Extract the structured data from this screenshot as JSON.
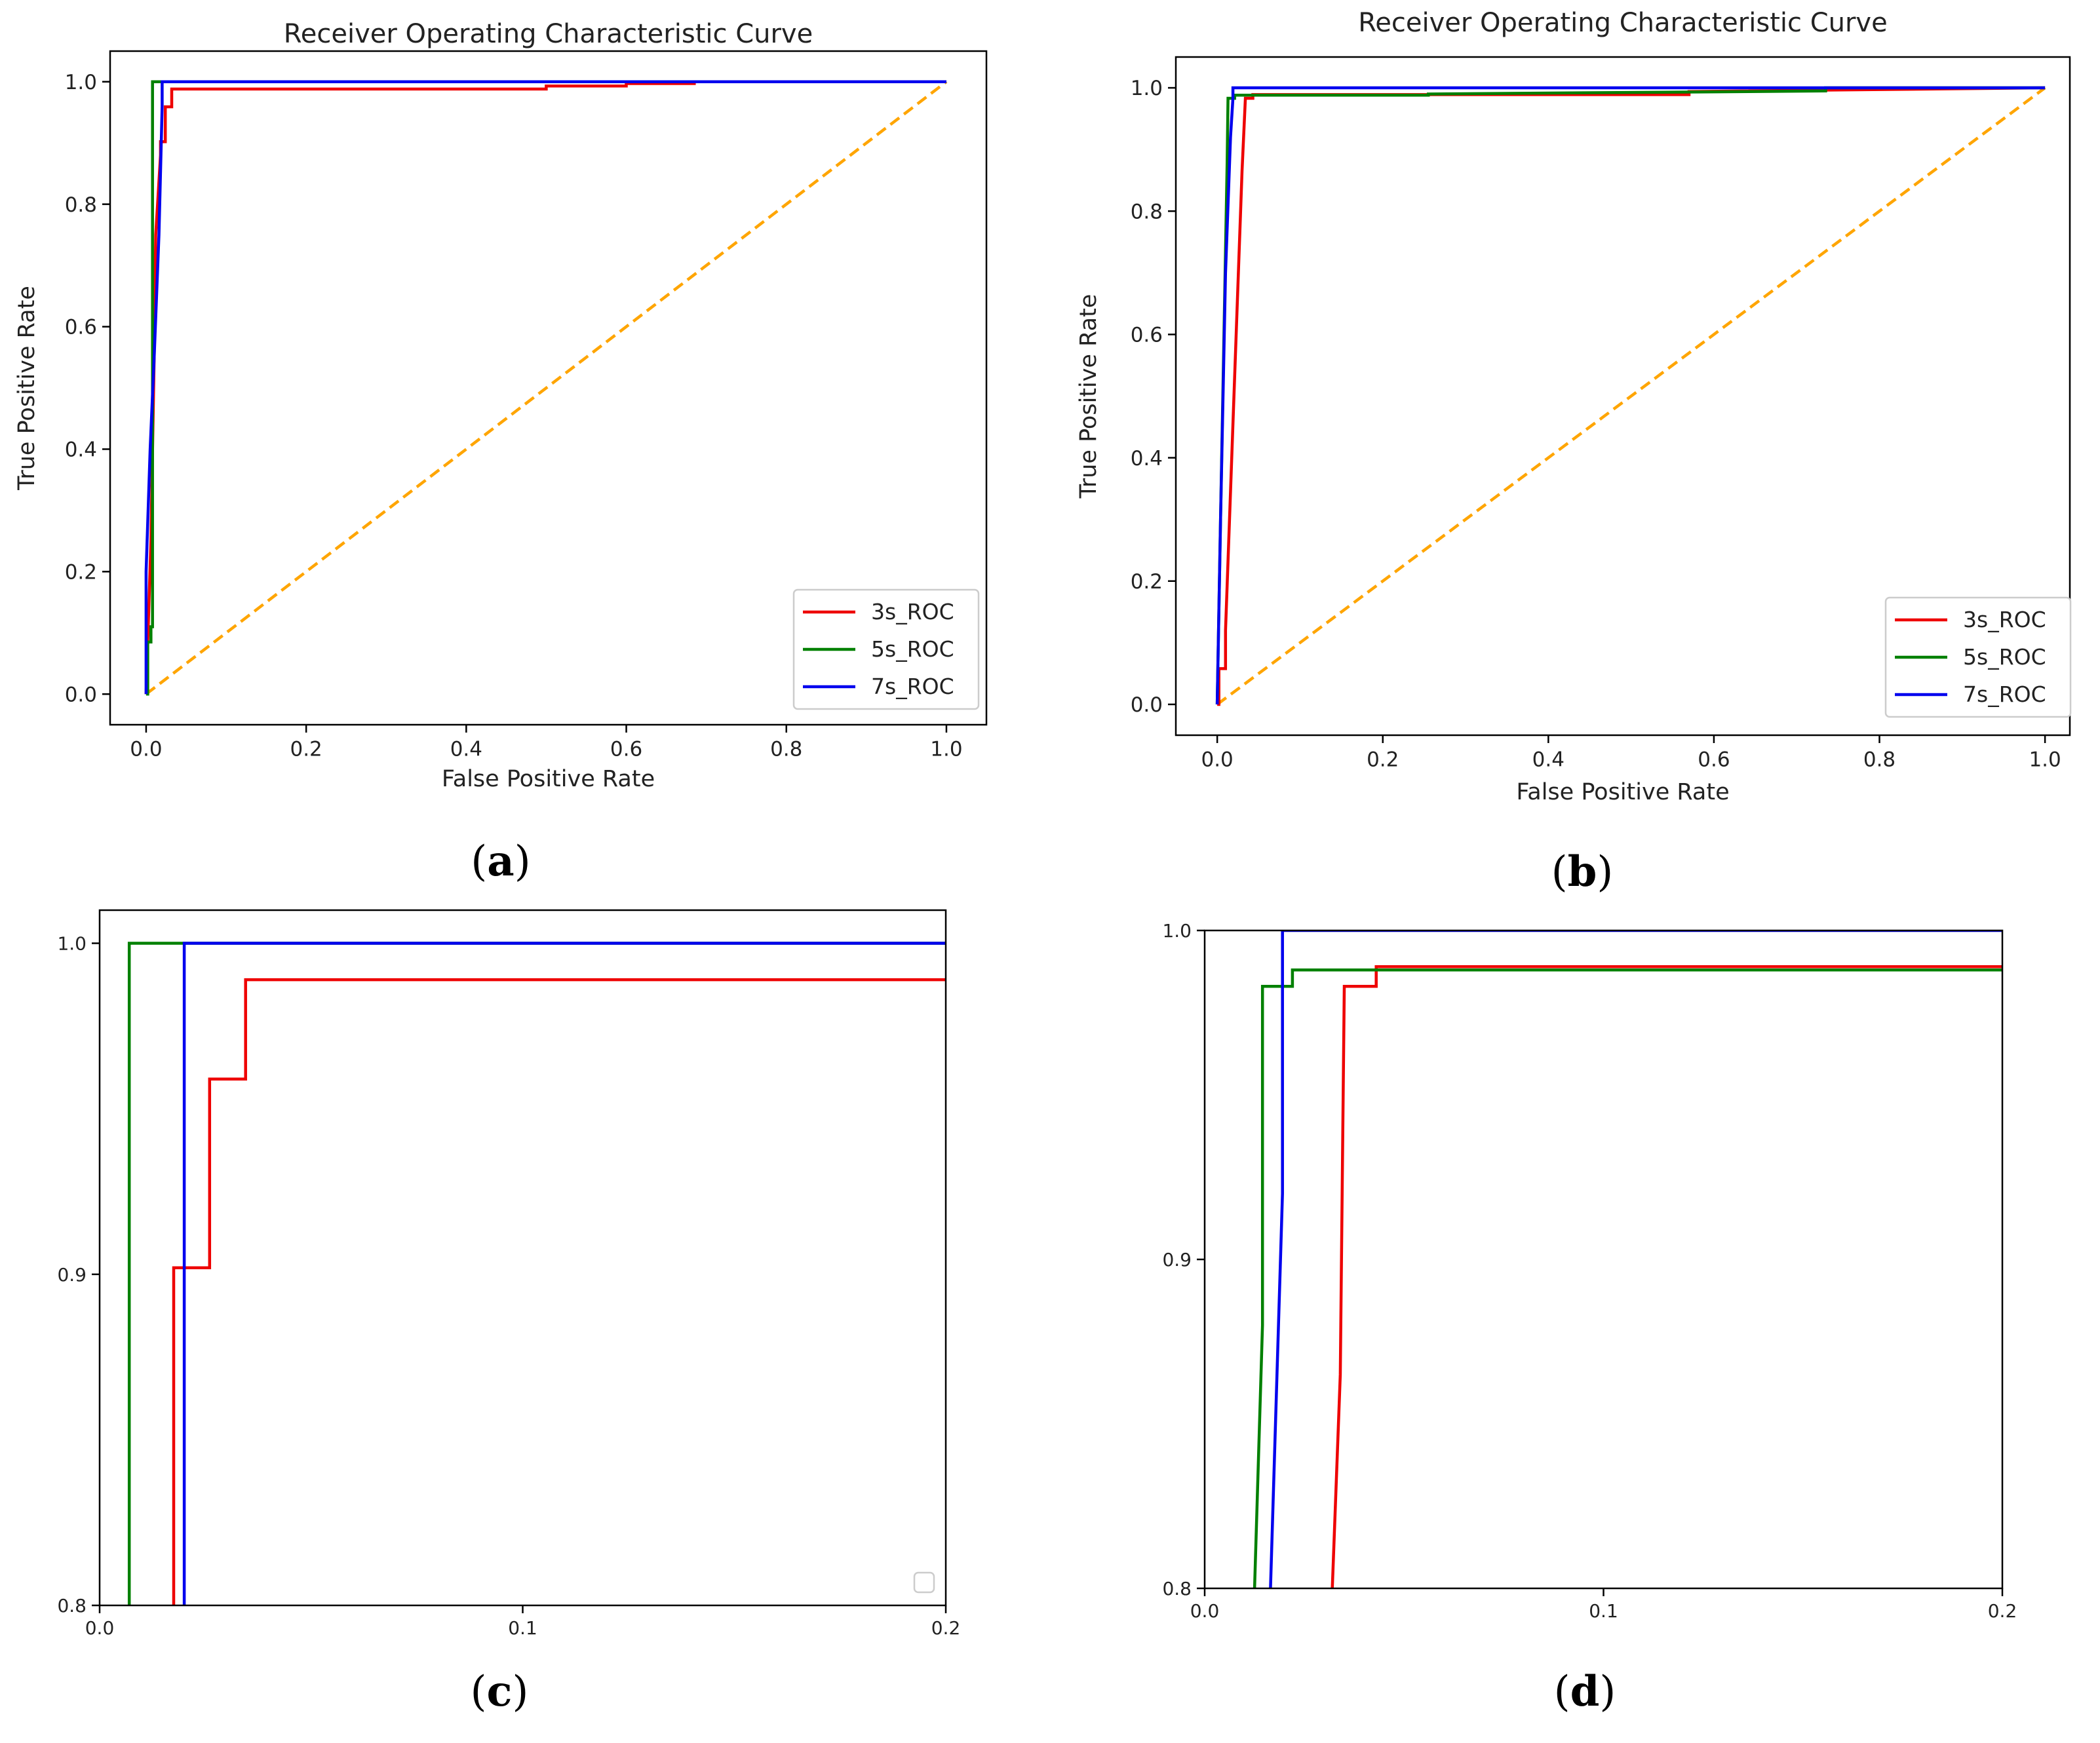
{
  "colors": {
    "3s_ROC": "#ee0000",
    "5s_ROC": "#008000",
    "7s_ROC": "#0000ee",
    "chance": "#ffa500",
    "axis": "#000000"
  },
  "chart_data": [
    {
      "type": "line",
      "panel": "a",
      "caption": "a",
      "title": "Receiver Operating Characteristic Curve",
      "xlabel": "False Positive Rate",
      "ylabel": "True Positive Rate",
      "xlim": [
        -0.045,
        1.05
      ],
      "ylim": [
        -0.05,
        1.05
      ],
      "xticks": [
        0.0,
        0.2,
        0.4,
        0.6,
        0.8,
        1.0
      ],
      "yticks": [
        0.0,
        0.2,
        0.4,
        0.6,
        0.8,
        1.0
      ],
      "xtick_labels": [
        "0.0",
        "0.2",
        "0.4",
        "0.6",
        "0.8",
        "1.0"
      ],
      "ytick_labels": [
        "0.0",
        "0.2",
        "0.4",
        "0.6",
        "0.8",
        "1.0"
      ],
      "legend": [
        "3s_ROC",
        "5s_ROC",
        "7s_ROC"
      ],
      "legend_position": "lower right",
      "chance_line": true,
      "series": [
        {
          "name": "3s_ROC",
          "x": [
            0,
            0.006,
            0.01,
            0.012,
            0.018,
            0.018,
            0.024,
            0.024,
            0.032,
            0.032,
            0.5,
            0.5,
            0.6,
            0.6,
            0.685,
            0.685,
            1.0
          ],
          "y": [
            0,
            0.25,
            0.55,
            0.75,
            0.88,
            0.902,
            0.902,
            0.959,
            0.959,
            0.988,
            0.988,
            0.993,
            0.993,
            0.997,
            0.997,
            1.0,
            1.0
          ]
        },
        {
          "name": "5s_ROC",
          "x": [
            0,
            0.002,
            0.002,
            0.006,
            0.006,
            0.008,
            0.008,
            1.0
          ],
          "y": [
            0,
            0.0,
            0.085,
            0.085,
            0.11,
            0.11,
            1.0,
            1.0
          ]
        },
        {
          "name": "7s_ROC",
          "x": [
            0,
            0,
            0.005,
            0.01,
            0.016,
            0.02,
            0.02,
            1.0
          ],
          "y": [
            0,
            0.2,
            0.4,
            0.55,
            0.75,
            0.96,
            1.0,
            1.0
          ]
        }
      ]
    },
    {
      "type": "line",
      "panel": "b",
      "caption": "b",
      "title": "Receiver Operating Characteristic Curve",
      "xlabel": "False Positive Rate",
      "ylabel": "True Positive Rate",
      "xlim": [
        -0.05,
        1.03
      ],
      "ylim": [
        -0.05,
        1.05
      ],
      "xticks": [
        0.0,
        0.2,
        0.4,
        0.6,
        0.8,
        1.0
      ],
      "yticks": [
        0.0,
        0.2,
        0.4,
        0.6,
        0.8,
        1.0
      ],
      "xtick_labels": [
        "0.0",
        "0.2",
        "0.4",
        "0.6",
        "0.8",
        "1.0"
      ],
      "ytick_labels": [
        "0.0",
        "0.2",
        "0.4",
        "0.6",
        "0.8",
        "1.0"
      ],
      "legend": [
        "3s_ROC",
        "5s_ROC",
        "7s_ROC"
      ],
      "legend_position": "lower right",
      "chance_line": true,
      "series": [
        {
          "name": "3s_ROC",
          "x": [
            0,
            0.002,
            0.002,
            0.01,
            0.01,
            0.03,
            0.034,
            0.034,
            0.043,
            0.043,
            0.57,
            0.57,
            1.0
          ],
          "y": [
            0,
            0.0,
            0.058,
            0.058,
            0.12,
            0.865,
            0.983,
            0.983,
            0.983,
            0.989,
            0.989,
            0.994,
            1.0
          ]
        },
        {
          "name": "5s_ROC",
          "x": [
            0,
            0.004,
            0.012,
            0.013,
            0.013,
            0.021,
            0.021,
            0.255,
            0.255,
            0.735,
            0.735,
            1.0
          ],
          "y": [
            0,
            0.3,
            0.88,
            0.983,
            0.983,
            0.983,
            0.988,
            0.988,
            0.99,
            0.995,
            1.0,
            1.0
          ]
        },
        {
          "name": "7s_ROC",
          "x": [
            0,
            0.004,
            0.01,
            0.016,
            0.019,
            0.019,
            1.0
          ],
          "y": [
            0,
            0.3,
            0.7,
            0.92,
            0.983,
            1.0,
            1.0
          ]
        }
      ]
    },
    {
      "type": "line",
      "panel": "c",
      "caption": "c",
      "title": "",
      "xlabel": "",
      "ylabel": "",
      "xlim": [
        0.0,
        0.2
      ],
      "ylim": [
        0.8,
        1.01
      ],
      "xticks": [
        0.0,
        0.1,
        0.2
      ],
      "yticks": [
        0.8,
        0.9,
        1.0
      ],
      "xtick_labels": [
        "0.0",
        "0.1",
        "0.2"
      ],
      "ytick_labels": [
        "0.8",
        "0.9",
        "1.0"
      ],
      "legend": [],
      "legend_position": "lower right (empty box)",
      "chance_line": false,
      "series": [
        {
          "name": "3s_ROC",
          "x": [
            0.0175,
            0.0175,
            0.026,
            0.026,
            0.0345,
            0.0345,
            0.2
          ],
          "y": [
            0.8,
            0.902,
            0.902,
            0.959,
            0.959,
            0.989,
            0.989
          ]
        },
        {
          "name": "5s_ROC",
          "x": [
            0.007,
            0.007,
            0.2
          ],
          "y": [
            0.8,
            1.0,
            1.0
          ]
        },
        {
          "name": "7s_ROC",
          "x": [
            0.02,
            0.02,
            0.2
          ],
          "y": [
            0.8,
            1.0,
            1.0
          ]
        }
      ]
    },
    {
      "type": "line",
      "panel": "d",
      "caption": "d",
      "title": "",
      "xlabel": "",
      "ylabel": "",
      "xlim": [
        0.0,
        0.2
      ],
      "ylim": [
        0.8,
        1.0
      ],
      "xticks": [
        0.0,
        0.1,
        0.2
      ],
      "yticks": [
        0.8,
        0.9,
        1.0
      ],
      "xtick_labels": [
        "0.0",
        "0.1",
        "0.2"
      ],
      "ytick_labels": [
        "0.8",
        "0.9",
        "1.0"
      ],
      "legend": [],
      "chance_line": false,
      "series": [
        {
          "name": "3s_ROC",
          "x": [
            0.032,
            0.034,
            0.034,
            0.035,
            0.035,
            0.043,
            0.043,
            0.2
          ],
          "y": [
            0.8,
            0.865,
            0.865,
            0.983,
            0.983,
            0.983,
            0.989,
            0.989
          ]
        },
        {
          "name": "5s_ROC",
          "x": [
            0.0125,
            0.0145,
            0.0145,
            0.022,
            0.022,
            0.2
          ],
          "y": [
            0.8,
            0.88,
            0.983,
            0.983,
            0.988,
            0.988
          ]
        },
        {
          "name": "7s_ROC",
          "x": [
            0.0165,
            0.0195,
            0.0195,
            0.2
          ],
          "y": [
            0.8,
            0.92,
            1.0,
            1.0
          ]
        }
      ]
    }
  ]
}
